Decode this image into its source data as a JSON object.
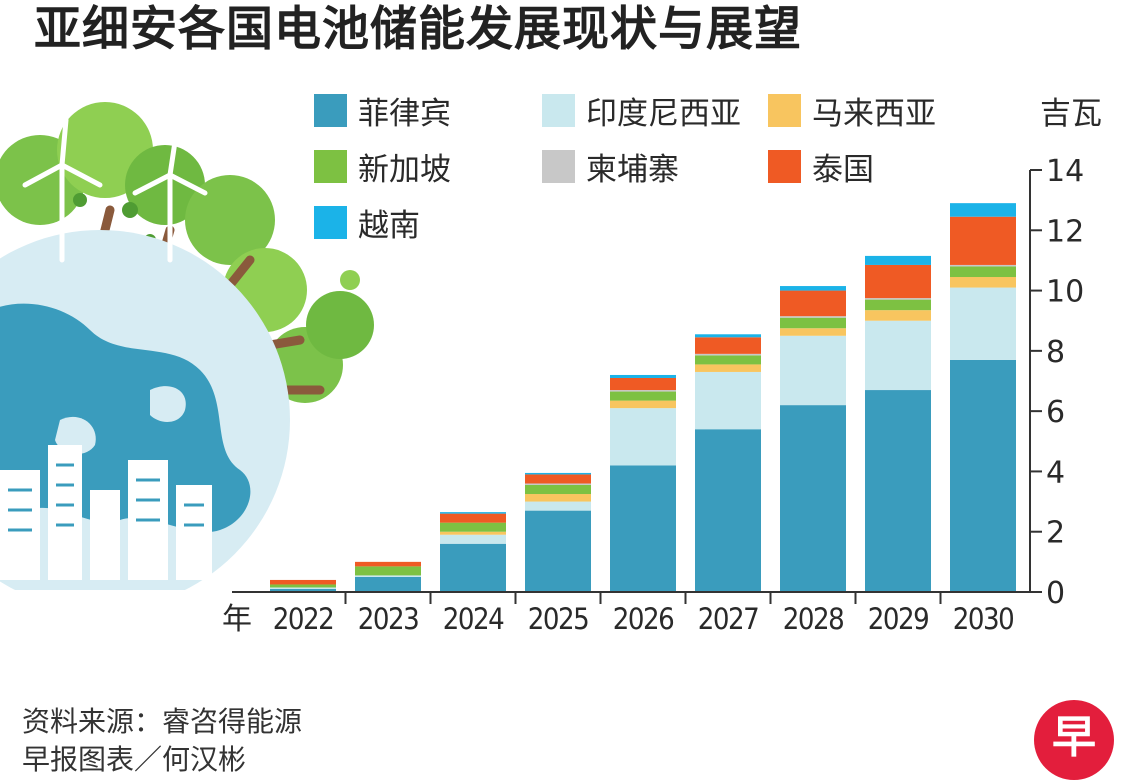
{
  "title": "亚细安各国电池储能发展现状与展望",
  "source": "资料来源：睿咨得能源",
  "credit": "早报图表／何汉彬",
  "logo": {
    "name": "zaobao-logo",
    "glyph": "早",
    "color": "#e31e3c"
  },
  "chart_data": {
    "type": "bar",
    "stacked": true,
    "categories": [
      "2022",
      "2023",
      "2024",
      "2025",
      "2026",
      "2027",
      "2028",
      "2029",
      "2030"
    ],
    "xlabel": "年",
    "ylabel": "吉瓦",
    "ylim": [
      0,
      14
    ],
    "yticks": [
      0,
      2,
      4,
      6,
      8,
      10,
      12,
      14
    ],
    "grid": false,
    "legend_position": "top",
    "series": [
      {
        "name": "菲律宾",
        "color": "#3a9cbd",
        "values": [
          0.1,
          0.5,
          1.6,
          2.7,
          4.2,
          5.4,
          6.2,
          6.7,
          7.7
        ]
      },
      {
        "name": "印度尼西亚",
        "color": "#c9e8ee",
        "values": [
          0.05,
          0.05,
          0.3,
          0.3,
          1.9,
          1.9,
          2.3,
          2.3,
          2.4
        ]
      },
      {
        "name": "马来西亚",
        "color": "#f8c55f",
        "values": [
          0.0,
          0.0,
          0.1,
          0.25,
          0.25,
          0.25,
          0.25,
          0.35,
          0.35
        ]
      },
      {
        "name": "新加坡",
        "color": "#7dc142",
        "values": [
          0.1,
          0.3,
          0.3,
          0.3,
          0.3,
          0.3,
          0.35,
          0.35,
          0.35
        ]
      },
      {
        "name": "柬埔寨",
        "color": "#c8c8c8",
        "values": [
          0.0,
          0.0,
          0.0,
          0.05,
          0.05,
          0.05,
          0.05,
          0.05,
          0.05
        ]
      },
      {
        "name": "泰国",
        "color": "#ef5a24",
        "values": [
          0.15,
          0.15,
          0.3,
          0.3,
          0.4,
          0.55,
          0.85,
          1.1,
          1.6
        ]
      },
      {
        "name": "越南",
        "color": "#1bb3e8",
        "values": [
          0.0,
          0.0,
          0.05,
          0.05,
          0.1,
          0.1,
          0.15,
          0.3,
          0.45
        ]
      }
    ]
  }
}
